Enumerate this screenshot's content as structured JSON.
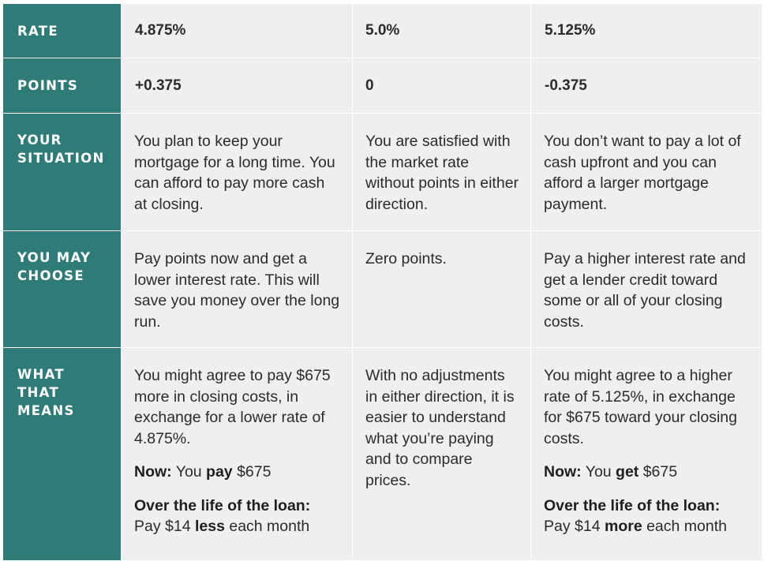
{
  "rows": [
    {
      "label": "RATE",
      "values": [
        "4.875%",
        "5.0%",
        "5.125%"
      ]
    },
    {
      "label": "POINTS",
      "values": [
        "+0.375",
        "0",
        "-0.375"
      ]
    },
    {
      "label": "YOUR\nSITUATION",
      "values": [
        "You plan to keep your mortgage for a long time. You can afford to pay more cash at closing.",
        "You are satisfied with the market rate without points in either direction.",
        "You don’t want to pay a lot of cash upfront and you can afford a larger mortgage payment."
      ]
    },
    {
      "label": "YOU MAY\nCHOOSE",
      "values": [
        "Pay points now and get a lower interest rate. This will save you money over the long run.",
        "Zero points.",
        "Pay a higher interest rate and get a lender credit toward some or all of your closing costs."
      ]
    },
    {
      "label": "WHAT\nTHAT\nMEANS",
      "col1": {
        "intro": "You might agree to pay $675 more in closing costs, in exchange for a lower rate of 4.875%.",
        "now_label": "Now:",
        "now_pre": " You ",
        "now_bold": "pay",
        "now_post": " $675",
        "life_label": "Over the life of the loan:",
        "life_pre": "Pay $14 ",
        "life_bold": "less",
        "life_post": " each month"
      },
      "col2": {
        "text": "With no adjustments in either direction, it is easier to understand what you’re paying and to compare prices."
      },
      "col3": {
        "intro": "You might agree to a higher rate of 5.125%, in exchange for $675 toward your closing costs.",
        "now_label": "Now:",
        "now_pre": " You ",
        "now_bold": "get",
        "now_post": " $675",
        "life_label": "Over the life of the loan:",
        "life_pre": "Pay $14 ",
        "life_bold": "more",
        "life_post": " each month"
      }
    }
  ]
}
